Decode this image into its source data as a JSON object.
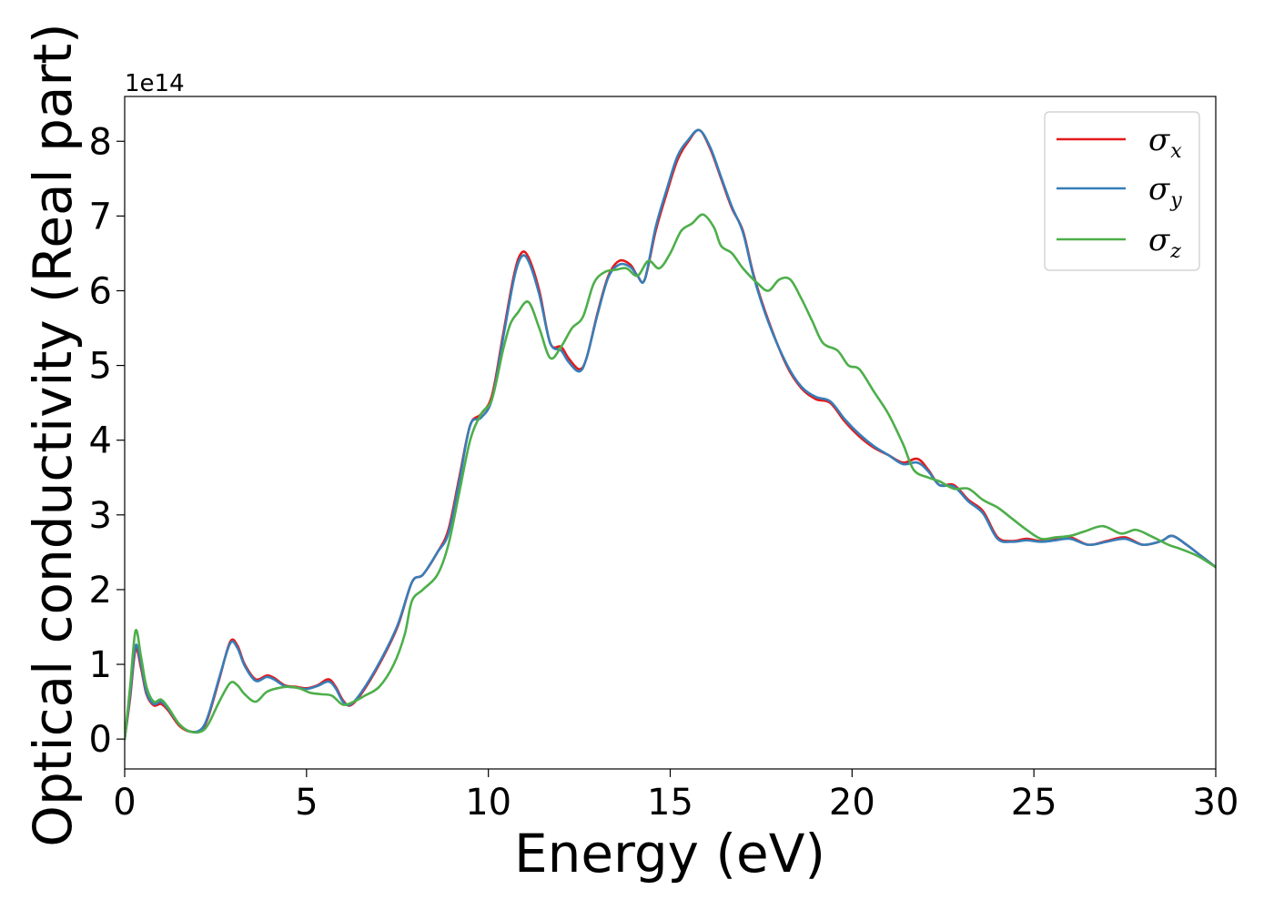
{
  "chart_data": {
    "type": "line",
    "xlabel": "Energy (eV)",
    "ylabel": "Optical conductivity (Real part)",
    "y_offset_label": "1e14",
    "y_scale_factor": 100000000000000.0,
    "xlim": [
      0,
      30
    ],
    "ylim": [
      -0.4,
      8.6
    ],
    "xticks": [
      0,
      5,
      10,
      15,
      20,
      25,
      30
    ],
    "xtick_labels": [
      "0",
      "5",
      "10",
      "15",
      "20",
      "25",
      "30"
    ],
    "yticks": [
      0,
      1,
      2,
      3,
      4,
      5,
      6,
      7,
      8
    ],
    "ytick_labels": [
      "0",
      "1",
      "2",
      "3",
      "4",
      "5",
      "6",
      "7",
      "8"
    ],
    "grid": false,
    "legend_position": "top-right",
    "series": [
      {
        "name": "σx",
        "symbol": "σ",
        "subscript": "x",
        "color": "#e41a1c",
        "points": [
          [
            0,
            0
          ],
          [
            0.15,
            0.55
          ],
          [
            0.3,
            1.2
          ],
          [
            0.45,
            0.95
          ],
          [
            0.6,
            0.6
          ],
          [
            0.8,
            0.45
          ],
          [
            1.0,
            0.47
          ],
          [
            1.2,
            0.38
          ],
          [
            1.5,
            0.18
          ],
          [
            1.8,
            0.1
          ],
          [
            2.1,
            0.12
          ],
          [
            2.3,
            0.3
          ],
          [
            2.6,
            0.8
          ],
          [
            2.9,
            1.3
          ],
          [
            3.1,
            1.25
          ],
          [
            3.3,
            1.0
          ],
          [
            3.6,
            0.8
          ],
          [
            3.9,
            0.85
          ],
          [
            4.1,
            0.82
          ],
          [
            4.4,
            0.72
          ],
          [
            4.7,
            0.7
          ],
          [
            5.0,
            0.68
          ],
          [
            5.3,
            0.72
          ],
          [
            5.6,
            0.8
          ],
          [
            5.8,
            0.7
          ],
          [
            6.0,
            0.52
          ],
          [
            6.2,
            0.45
          ],
          [
            6.5,
            0.6
          ],
          [
            7.0,
            1.0
          ],
          [
            7.5,
            1.5
          ],
          [
            7.9,
            2.1
          ],
          [
            8.2,
            2.2
          ],
          [
            8.6,
            2.5
          ],
          [
            8.9,
            2.8
          ],
          [
            9.2,
            3.5
          ],
          [
            9.5,
            4.2
          ],
          [
            9.8,
            4.35
          ],
          [
            10.1,
            4.6
          ],
          [
            10.4,
            5.4
          ],
          [
            10.7,
            6.2
          ],
          [
            10.9,
            6.5
          ],
          [
            11.1,
            6.45
          ],
          [
            11.4,
            6.0
          ],
          [
            11.7,
            5.3
          ],
          [
            12.0,
            5.25
          ],
          [
            12.2,
            5.1
          ],
          [
            12.5,
            4.95
          ],
          [
            12.7,
            5.1
          ],
          [
            13.0,
            5.7
          ],
          [
            13.3,
            6.2
          ],
          [
            13.6,
            6.4
          ],
          [
            13.9,
            6.35
          ],
          [
            14.1,
            6.2
          ],
          [
            14.3,
            6.15
          ],
          [
            14.6,
            6.8
          ],
          [
            14.9,
            7.3
          ],
          [
            15.2,
            7.75
          ],
          [
            15.5,
            8.0
          ],
          [
            15.8,
            8.15
          ],
          [
            16.1,
            7.9
          ],
          [
            16.4,
            7.5
          ],
          [
            16.7,
            7.1
          ],
          [
            17.0,
            6.8
          ],
          [
            17.3,
            6.2
          ],
          [
            17.7,
            5.6
          ],
          [
            18.2,
            5.0
          ],
          [
            18.6,
            4.7
          ],
          [
            19.0,
            4.55
          ],
          [
            19.4,
            4.5
          ],
          [
            19.8,
            4.25
          ],
          [
            20.2,
            4.05
          ],
          [
            20.6,
            3.9
          ],
          [
            21.0,
            3.8
          ],
          [
            21.4,
            3.7
          ],
          [
            21.8,
            3.75
          ],
          [
            22.1,
            3.6
          ],
          [
            22.4,
            3.4
          ],
          [
            22.8,
            3.4
          ],
          [
            23.2,
            3.2
          ],
          [
            23.6,
            3.05
          ],
          [
            24.0,
            2.7
          ],
          [
            24.4,
            2.65
          ],
          [
            24.8,
            2.68
          ],
          [
            25.2,
            2.65
          ],
          [
            25.6,
            2.68
          ],
          [
            26.0,
            2.7
          ],
          [
            26.5,
            2.6
          ],
          [
            27.0,
            2.65
          ],
          [
            27.5,
            2.7
          ],
          [
            28.0,
            2.6
          ],
          [
            28.5,
            2.65
          ],
          [
            28.8,
            2.72
          ],
          [
            29.2,
            2.6
          ],
          [
            29.6,
            2.45
          ],
          [
            30.0,
            2.3
          ]
        ]
      },
      {
        "name": "σy",
        "symbol": "σ",
        "subscript": "y",
        "color": "#377eb8",
        "points": [
          [
            0,
            0
          ],
          [
            0.15,
            0.6
          ],
          [
            0.3,
            1.25
          ],
          [
            0.45,
            1.0
          ],
          [
            0.6,
            0.62
          ],
          [
            0.8,
            0.47
          ],
          [
            1.0,
            0.5
          ],
          [
            1.2,
            0.4
          ],
          [
            1.5,
            0.2
          ],
          [
            1.8,
            0.1
          ],
          [
            2.1,
            0.13
          ],
          [
            2.3,
            0.32
          ],
          [
            2.6,
            0.82
          ],
          [
            2.9,
            1.28
          ],
          [
            3.1,
            1.22
          ],
          [
            3.3,
            0.98
          ],
          [
            3.6,
            0.78
          ],
          [
            3.9,
            0.83
          ],
          [
            4.1,
            0.8
          ],
          [
            4.4,
            0.71
          ],
          [
            4.7,
            0.69
          ],
          [
            5.0,
            0.67
          ],
          [
            5.3,
            0.71
          ],
          [
            5.6,
            0.77
          ],
          [
            5.8,
            0.68
          ],
          [
            6.0,
            0.5
          ],
          [
            6.2,
            0.46
          ],
          [
            6.5,
            0.62
          ],
          [
            7.0,
            1.02
          ],
          [
            7.5,
            1.52
          ],
          [
            7.9,
            2.1
          ],
          [
            8.2,
            2.2
          ],
          [
            8.6,
            2.5
          ],
          [
            8.9,
            2.75
          ],
          [
            9.2,
            3.45
          ],
          [
            9.5,
            4.2
          ],
          [
            9.8,
            4.3
          ],
          [
            10.1,
            4.55
          ],
          [
            10.4,
            5.35
          ],
          [
            10.7,
            6.15
          ],
          [
            10.9,
            6.45
          ],
          [
            11.1,
            6.4
          ],
          [
            11.4,
            5.95
          ],
          [
            11.7,
            5.3
          ],
          [
            12.0,
            5.2
          ],
          [
            12.2,
            5.05
          ],
          [
            12.5,
            4.92
          ],
          [
            12.7,
            5.1
          ],
          [
            13.0,
            5.68
          ],
          [
            13.3,
            6.18
          ],
          [
            13.6,
            6.35
          ],
          [
            13.9,
            6.32
          ],
          [
            14.1,
            6.2
          ],
          [
            14.3,
            6.15
          ],
          [
            14.6,
            6.85
          ],
          [
            14.9,
            7.35
          ],
          [
            15.2,
            7.8
          ],
          [
            15.5,
            8.02
          ],
          [
            15.8,
            8.15
          ],
          [
            16.1,
            7.92
          ],
          [
            16.4,
            7.52
          ],
          [
            16.7,
            7.12
          ],
          [
            17.0,
            6.78
          ],
          [
            17.3,
            6.18
          ],
          [
            17.7,
            5.58
          ],
          [
            18.2,
            5.02
          ],
          [
            18.6,
            4.72
          ],
          [
            19.0,
            4.58
          ],
          [
            19.4,
            4.52
          ],
          [
            19.8,
            4.28
          ],
          [
            20.2,
            4.08
          ],
          [
            20.6,
            3.92
          ],
          [
            21.0,
            3.8
          ],
          [
            21.4,
            3.68
          ],
          [
            21.8,
            3.7
          ],
          [
            22.1,
            3.58
          ],
          [
            22.4,
            3.4
          ],
          [
            22.8,
            3.38
          ],
          [
            23.2,
            3.18
          ],
          [
            23.6,
            3.02
          ],
          [
            24.0,
            2.68
          ],
          [
            24.4,
            2.64
          ],
          [
            24.8,
            2.66
          ],
          [
            25.2,
            2.64
          ],
          [
            25.6,
            2.66
          ],
          [
            26.0,
            2.68
          ],
          [
            26.5,
            2.6
          ],
          [
            27.0,
            2.64
          ],
          [
            27.5,
            2.68
          ],
          [
            28.0,
            2.6
          ],
          [
            28.5,
            2.65
          ],
          [
            28.8,
            2.72
          ],
          [
            29.2,
            2.6
          ],
          [
            29.6,
            2.45
          ],
          [
            30.0,
            2.3
          ]
        ]
      },
      {
        "name": "σz",
        "symbol": "σ",
        "subscript": "z",
        "color": "#4daf4a",
        "points": [
          [
            0,
            0
          ],
          [
            0.15,
            0.7
          ],
          [
            0.3,
            1.45
          ],
          [
            0.45,
            1.1
          ],
          [
            0.6,
            0.7
          ],
          [
            0.8,
            0.5
          ],
          [
            1.0,
            0.53
          ],
          [
            1.2,
            0.42
          ],
          [
            1.5,
            0.2
          ],
          [
            1.8,
            0.1
          ],
          [
            2.1,
            0.1
          ],
          [
            2.3,
            0.2
          ],
          [
            2.6,
            0.5
          ],
          [
            2.9,
            0.75
          ],
          [
            3.1,
            0.72
          ],
          [
            3.3,
            0.6
          ],
          [
            3.6,
            0.5
          ],
          [
            3.9,
            0.63
          ],
          [
            4.2,
            0.68
          ],
          [
            4.5,
            0.7
          ],
          [
            4.8,
            0.68
          ],
          [
            5.1,
            0.62
          ],
          [
            5.4,
            0.6
          ],
          [
            5.7,
            0.58
          ],
          [
            6.0,
            0.46
          ],
          [
            6.3,
            0.5
          ],
          [
            6.6,
            0.58
          ],
          [
            7.0,
            0.7
          ],
          [
            7.4,
            1.0
          ],
          [
            7.7,
            1.4
          ],
          [
            7.9,
            1.85
          ],
          [
            8.2,
            2.0
          ],
          [
            8.6,
            2.2
          ],
          [
            8.9,
            2.6
          ],
          [
            9.2,
            3.3
          ],
          [
            9.5,
            4.0
          ],
          [
            9.8,
            4.35
          ],
          [
            10.1,
            4.55
          ],
          [
            10.4,
            5.2
          ],
          [
            10.6,
            5.55
          ],
          [
            10.8,
            5.7
          ],
          [
            11.1,
            5.85
          ],
          [
            11.4,
            5.5
          ],
          [
            11.7,
            5.1
          ],
          [
            12.0,
            5.25
          ],
          [
            12.3,
            5.5
          ],
          [
            12.6,
            5.65
          ],
          [
            12.9,
            6.1
          ],
          [
            13.2,
            6.25
          ],
          [
            13.5,
            6.28
          ],
          [
            13.8,
            6.3
          ],
          [
            14.1,
            6.2
          ],
          [
            14.4,
            6.4
          ],
          [
            14.7,
            6.3
          ],
          [
            15.0,
            6.5
          ],
          [
            15.3,
            6.8
          ],
          [
            15.6,
            6.9
          ],
          [
            15.9,
            7.02
          ],
          [
            16.2,
            6.85
          ],
          [
            16.4,
            6.6
          ],
          [
            16.7,
            6.5
          ],
          [
            17.0,
            6.3
          ],
          [
            17.4,
            6.1
          ],
          [
            17.7,
            6.0
          ],
          [
            18.0,
            6.15
          ],
          [
            18.3,
            6.15
          ],
          [
            18.6,
            5.9
          ],
          [
            18.9,
            5.6
          ],
          [
            19.2,
            5.3
          ],
          [
            19.6,
            5.2
          ],
          [
            19.9,
            5.0
          ],
          [
            20.2,
            4.95
          ],
          [
            20.6,
            4.65
          ],
          [
            21.0,
            4.35
          ],
          [
            21.4,
            3.95
          ],
          [
            21.7,
            3.6
          ],
          [
            22.1,
            3.5
          ],
          [
            22.4,
            3.45
          ],
          [
            22.8,
            3.35
          ],
          [
            23.2,
            3.35
          ],
          [
            23.6,
            3.2
          ],
          [
            24.0,
            3.1
          ],
          [
            24.4,
            2.95
          ],
          [
            24.8,
            2.8
          ],
          [
            25.2,
            2.68
          ],
          [
            25.6,
            2.7
          ],
          [
            26.0,
            2.72
          ],
          [
            26.4,
            2.78
          ],
          [
            26.9,
            2.85
          ],
          [
            27.4,
            2.75
          ],
          [
            27.8,
            2.8
          ],
          [
            28.2,
            2.72
          ],
          [
            28.7,
            2.6
          ],
          [
            29.0,
            2.55
          ],
          [
            29.5,
            2.45
          ],
          [
            30.0,
            2.3
          ]
        ]
      }
    ]
  }
}
